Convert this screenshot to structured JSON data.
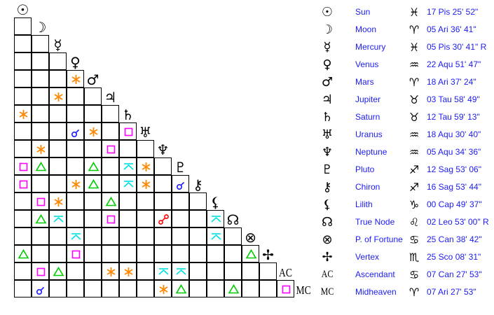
{
  "planets": [
    {
      "name": "Sun",
      "glyph": "☉",
      "sign_glyph": "♓",
      "position": "17 Pis 25' 52\""
    },
    {
      "name": "Moon",
      "glyph": "☽",
      "sign_glyph": "♈",
      "position": "05 Ari 36' 41\""
    },
    {
      "name": "Mercury",
      "glyph": "☿",
      "sign_glyph": "♓",
      "position": "05 Pis 30' 41\" R"
    },
    {
      "name": "Venus",
      "glyph": "♀",
      "sign_glyph": "♒",
      "position": "22 Aqu 51' 47\""
    },
    {
      "name": "Mars",
      "glyph": "♂",
      "sign_glyph": "♈",
      "position": "18 Ari 37' 24\""
    },
    {
      "name": "Jupiter",
      "glyph": "♃",
      "sign_glyph": "♉",
      "position": "03 Tau 58' 49\""
    },
    {
      "name": "Saturn",
      "glyph": "♄",
      "sign_glyph": "♉",
      "position": "12 Tau 59' 13\""
    },
    {
      "name": "Uranus",
      "glyph": "♅",
      "sign_glyph": "♒",
      "position": "18 Aqu 30' 40\""
    },
    {
      "name": "Neptune",
      "glyph": "♆",
      "sign_glyph": "♒",
      "position": "05 Aqu 34' 36\""
    },
    {
      "name": "Pluto",
      "glyph": "♇",
      "sign_glyph": "♐",
      "position": "12 Sag 53' 06\""
    },
    {
      "name": "Chiron",
      "glyph": "⚷",
      "sign_glyph": "♐",
      "position": "16 Sag 53' 44\""
    },
    {
      "name": "Lilith",
      "glyph": "⚸",
      "sign_glyph": "♑",
      "position": "00 Cap 49' 37\""
    },
    {
      "name": "True Node",
      "glyph": "☊",
      "sign_glyph": "♌",
      "position": "02 Leo 53' 00\" R"
    },
    {
      "name": "P. of Fortune",
      "glyph": "⊗",
      "sign_glyph": "♋",
      "position": "25 Can 38' 42\""
    },
    {
      "name": "Vertex",
      "glyph": "✢",
      "sign_glyph": "♏",
      "position": "25 Sco 08' 31\""
    },
    {
      "name": "Ascendant",
      "glyph": "AC",
      "sign_glyph": "♋",
      "position": "07 Can 27' 53\""
    },
    {
      "name": "Midheaven",
      "glyph": "MC",
      "sign_glyph": "♈",
      "position": "07 Ari 27' 53\""
    }
  ],
  "aspect_colors": {
    "conjunction": "#1a1aff",
    "sextile": "#ff8800",
    "square": "#ff00ff",
    "trine": "#00cc00",
    "quincunx": "#00e0e0",
    "opposition": "#ff0000"
  },
  "aspects": [
    [
      "Mars",
      "Venus",
      "sextile"
    ],
    [
      "Jupiter",
      "Mercury",
      "sextile"
    ],
    [
      "Saturn",
      "Sun",
      "sextile"
    ],
    [
      "Uranus",
      "Venus",
      "conjunction"
    ],
    [
      "Uranus",
      "Mars",
      "sextile"
    ],
    [
      "Uranus",
      "Saturn",
      "square"
    ],
    [
      "Neptune",
      "Moon",
      "sextile"
    ],
    [
      "Neptune",
      "Jupiter",
      "square"
    ],
    [
      "Pluto",
      "Sun",
      "square"
    ],
    [
      "Pluto",
      "Moon",
      "trine"
    ],
    [
      "Pluto",
      "Mars",
      "trine"
    ],
    [
      "Pluto",
      "Saturn",
      "quincunx"
    ],
    [
      "Pluto",
      "Uranus",
      "sextile"
    ],
    [
      "Chiron",
      "Sun",
      "square"
    ],
    [
      "Chiron",
      "Venus",
      "sextile"
    ],
    [
      "Chiron",
      "Mars",
      "trine"
    ],
    [
      "Chiron",
      "Saturn",
      "quincunx"
    ],
    [
      "Chiron",
      "Uranus",
      "sextile"
    ],
    [
      "Chiron",
      "Pluto",
      "conjunction"
    ],
    [
      "Lilith",
      "Moon",
      "square"
    ],
    [
      "Lilith",
      "Mercury",
      "sextile"
    ],
    [
      "Lilith",
      "Jupiter",
      "trine"
    ],
    [
      "True Node",
      "Moon",
      "trine"
    ],
    [
      "True Node",
      "Mercury",
      "quincunx"
    ],
    [
      "True Node",
      "Jupiter",
      "square"
    ],
    [
      "True Node",
      "Neptune",
      "opposition"
    ],
    [
      "True Node",
      "Lilith",
      "quincunx"
    ],
    [
      "P. of Fortune",
      "Venus",
      "quincunx"
    ],
    [
      "P. of Fortune",
      "Lilith",
      "quincunx"
    ],
    [
      "Vertex",
      "Sun",
      "trine"
    ],
    [
      "Vertex",
      "Venus",
      "square"
    ],
    [
      "Vertex",
      "P. of Fortune",
      "trine"
    ],
    [
      "Ascendant",
      "Moon",
      "square"
    ],
    [
      "Ascendant",
      "Mercury",
      "trine"
    ],
    [
      "Ascendant",
      "Jupiter",
      "sextile"
    ],
    [
      "Ascendant",
      "Saturn",
      "sextile"
    ],
    [
      "Ascendant",
      "Neptune",
      "quincunx"
    ],
    [
      "Ascendant",
      "Pluto",
      "quincunx"
    ],
    [
      "Midheaven",
      "Moon",
      "conjunction"
    ],
    [
      "Midheaven",
      "Neptune",
      "sextile"
    ],
    [
      "Midheaven",
      "Pluto",
      "trine"
    ],
    [
      "Midheaven",
      "True Node",
      "trine"
    ],
    [
      "Midheaven",
      "Ascendant",
      "square"
    ]
  ]
}
